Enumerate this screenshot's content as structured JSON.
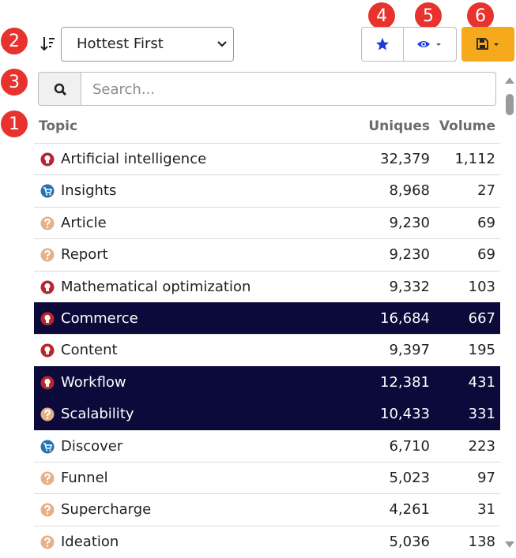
{
  "badges": [
    1,
    2,
    3,
    4,
    5,
    6
  ],
  "sort_select": {
    "label": "Hottest First"
  },
  "search": {
    "placeholder": "Search..."
  },
  "table": {
    "columns": [
      "Topic",
      "Uniques",
      "Volume"
    ],
    "rows": [
      {
        "icon": "idea",
        "selected": false,
        "cells": [
          "Artificial intelligence",
          "32,379",
          "1,112"
        ]
      },
      {
        "icon": "cart",
        "selected": false,
        "cells": [
          "Insights",
          "8,968",
          "27"
        ]
      },
      {
        "icon": "question",
        "selected": false,
        "cells": [
          "Article",
          "9,230",
          "69"
        ]
      },
      {
        "icon": "question",
        "selected": false,
        "cells": [
          "Report",
          "9,230",
          "69"
        ]
      },
      {
        "icon": "idea",
        "selected": false,
        "cells": [
          "Mathematical optimization",
          "9,332",
          "103"
        ]
      },
      {
        "icon": "idea",
        "selected": true,
        "cells": [
          "Commerce",
          "16,684",
          "667"
        ]
      },
      {
        "icon": "idea",
        "selected": false,
        "cells": [
          "Content",
          "9,397",
          "195"
        ]
      },
      {
        "icon": "idea",
        "selected": true,
        "cells": [
          "Workflow",
          "12,381",
          "431"
        ]
      },
      {
        "icon": "question",
        "selected": true,
        "cells": [
          "Scalability",
          "10,433",
          "331"
        ]
      },
      {
        "icon": "cart",
        "selected": false,
        "cells": [
          "Discover",
          "6,710",
          "223"
        ]
      },
      {
        "icon": "question",
        "selected": false,
        "cells": [
          "Funnel",
          "5,023",
          "97"
        ]
      },
      {
        "icon": "question",
        "selected": false,
        "cells": [
          "Supercharge",
          "4,261",
          "31"
        ]
      },
      {
        "icon": "question",
        "selected": false,
        "cells": [
          "Ideation",
          "5,036",
          "138"
        ]
      }
    ]
  }
}
